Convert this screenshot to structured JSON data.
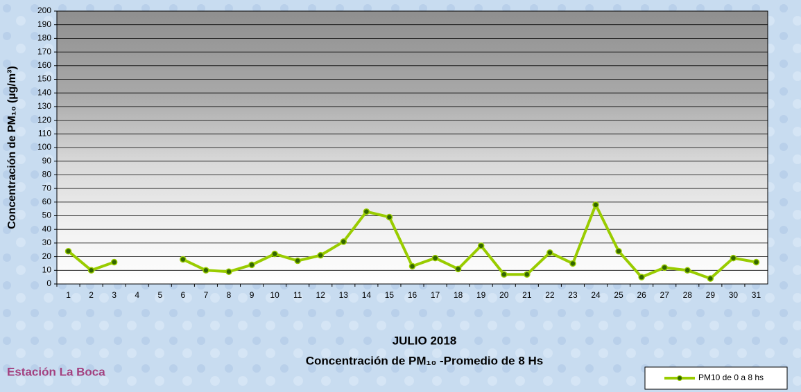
{
  "chart_data": {
    "type": "line",
    "title": "JULIO 2018",
    "subtitle": "Concentración de PM₁₀ -Promedio de 8 Hs",
    "annotation": "Estación La Boca",
    "y_label": "Concentración de PM₁₀ (µg/m³)",
    "categories": [
      1,
      2,
      3,
      4,
      5,
      6,
      7,
      8,
      9,
      10,
      11,
      12,
      13,
      14,
      15,
      16,
      17,
      18,
      19,
      20,
      21,
      22,
      23,
      24,
      25,
      26,
      27,
      28,
      29,
      30,
      31
    ],
    "series": [
      {
        "name": "PM10 de 0 a 8 hs",
        "color": "#99cc00",
        "marker_color": "#336600",
        "values": [
          24,
          10,
          16,
          null,
          null,
          18,
          10,
          9,
          14,
          22,
          17,
          21,
          31,
          53,
          49,
          13,
          19,
          11,
          28,
          7,
          7,
          23,
          15,
          58,
          24,
          5,
          12,
          10,
          4,
          19,
          16
        ]
      }
    ],
    "ylim": [
      0,
      200
    ],
    "yticks": [
      0,
      10,
      20,
      30,
      40,
      50,
      60,
      70,
      80,
      90,
      100,
      110,
      120,
      130,
      140,
      150,
      160,
      170,
      180,
      190,
      200
    ],
    "grid": true
  }
}
